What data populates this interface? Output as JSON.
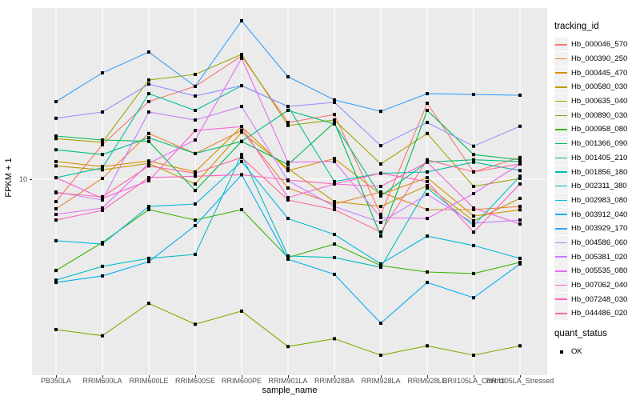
{
  "figure": {
    "background": "#FFFFFF",
    "panel_background": "#EBEBEB",
    "gridline_color": "#FFFFFF",
    "axis_text_color": "#4D4D4D",
    "point_color": "#000000"
  },
  "axes": {
    "x": {
      "title": "sample_name"
    },
    "y": {
      "title": "FPKM + 1",
      "tick_labels": [
        "10"
      ],
      "tick_values": [
        10
      ],
      "scale": "log10"
    }
  },
  "legend": {
    "tracking_title": "tracking_id",
    "quant_title": "quant_status",
    "quant_items": [
      {
        "label": "OK",
        "shape": "black-square"
      }
    ]
  },
  "chart_data": {
    "type": "line",
    "title": "",
    "xlabel": "sample_name",
    "ylabel": "FPKM + 1",
    "y_scale": "log10",
    "ylim": [
      0.9,
      95
    ],
    "y_ticks": [
      10
    ],
    "grid": true,
    "legend_position": "right",
    "point_shape": "filled-square",
    "categories": [
      "PB350LA",
      "RRIM600LA",
      "RRIM600LE",
      "RRIM600SE",
      "RRIM600PE",
      "RRIM901LA",
      "RRIM928BA",
      "RRIM928LA",
      "RRIM928LE",
      "RRII105LA_Control",
      "RRII105LA_Stressed"
    ],
    "series": [
      {
        "name": "Hb_000046_570",
        "color": "#F8766D",
        "values": [
          7.46,
          15.7,
          27.6,
          33.7,
          50.1,
          21.0,
          23.3,
          6.31,
          27.0,
          11.0,
          13.3
        ]
      },
      {
        "name": "Hb_000390_250",
        "color": "#EA8331",
        "values": [
          6.79,
          10.1,
          18.2,
          14.0,
          18.9,
          8.91,
          7.23,
          8.46,
          6.72,
          6.72,
          7.0
        ]
      },
      {
        "name": "Hb_000445_470",
        "color": "#D89000",
        "values": [
          12.6,
          11.8,
          12.7,
          11.0,
          19.9,
          11.2,
          13.1,
          8.2,
          10.2,
          6.18,
          6.7
        ]
      },
      {
        "name": "Hb_000580_030",
        "color": "#C09B00",
        "values": [
          11.9,
          11.3,
          12.3,
          9.39,
          18.5,
          11.5,
          7.46,
          7.0,
          9.2,
          5.8,
          7.78
        ]
      },
      {
        "name": "Hb_000635_040",
        "color": "#A3A500",
        "values": [
          17.0,
          16.2,
          36.6,
          39.4,
          51.2,
          20.2,
          21.7,
          12.2,
          18.2,
          9.1,
          10.1
        ]
      },
      {
        "name": "Hb_000890_030",
        "color": "#7CAE00",
        "values": [
          1.4,
          1.29,
          1.97,
          1.5,
          1.78,
          1.12,
          1.24,
          1.0,
          1.13,
          1.0,
          1.13
        ]
      },
      {
        "name": "Hb_000958_080",
        "color": "#39B600",
        "values": [
          3.03,
          4.37,
          6.72,
          5.86,
          6.72,
          3.59,
          4.28,
          3.23,
          2.97,
          2.91,
          3.37
        ]
      },
      {
        "name": "Hb_001366_090",
        "color": "#00BB4E",
        "values": [
          17.6,
          16.7,
          16.4,
          8.63,
          16.4,
          12.1,
          21.0,
          4.75,
          24.6,
          13.8,
          12.9
        ]
      },
      {
        "name": "Hb_001405_210",
        "color": "#00BF7D",
        "values": [
          14.7,
          13.8,
          17.2,
          14.0,
          16.4,
          24.6,
          20.6,
          8.03,
          12.5,
          12.9,
          12.6
        ]
      },
      {
        "name": "Hb_001856_180",
        "color": "#00C1A3",
        "values": [
          10.2,
          11.6,
          30.6,
          24.6,
          34.0,
          25.9,
          9.7,
          10.8,
          11.0,
          12.5,
          11.2
        ]
      },
      {
        "name": "Hb_002311_380",
        "color": "#00BFC4",
        "values": [
          2.67,
          3.2,
          3.55,
          3.74,
          13.8,
          3.66,
          3.59,
          3.16,
          8.91,
          5.45,
          10.4
        ]
      },
      {
        "name": "Hb_002983_080",
        "color": "#00BAE0",
        "values": [
          4.47,
          4.28,
          7.0,
          7.23,
          12.6,
          5.98,
          4.85,
          3.3,
          4.75,
          4.2,
          3.55
        ]
      },
      {
        "name": "Hb_003912_040",
        "color": "#00B0F6",
        "values": [
          2.59,
          2.82,
          3.4,
          5.45,
          10.6,
          3.51,
          2.88,
          1.52,
          2.59,
          2.12,
          3.3
        ]
      },
      {
        "name": "Hb_003929_170",
        "color": "#35A2FF",
        "values": [
          27.6,
          40.2,
          52.8,
          33.7,
          79.4,
          38.2,
          28.2,
          24.3,
          30.6,
          30.3,
          30.0
        ]
      },
      {
        "name": "Hb_004586_060",
        "color": "#9590FF",
        "values": [
          22.2,
          24.1,
          34.7,
          29.7,
          34.0,
          25.9,
          27.3,
          15.5,
          21.0,
          15.4,
          20.0
        ]
      },
      {
        "name": "Hb_005381_020",
        "color": "#C77CFF",
        "values": [
          8.46,
          7.62,
          24.1,
          21.7,
          25.9,
          9.8,
          7.0,
          5.68,
          8.2,
          5.62,
          5.86
        ]
      },
      {
        "name": "Hb_005535_080",
        "color": "#E76BF3",
        "values": [
          6.31,
          6.86,
          12.3,
          16.7,
          48.6,
          12.5,
          12.6,
          6.05,
          5.98,
          8.28,
          12.2
        ]
      },
      {
        "name": "Hb_007062_040",
        "color": "#FA62DB",
        "values": [
          10.2,
          7.78,
          9.8,
          18.9,
          19.9,
          7.86,
          9.39,
          9.1,
          12.5,
          6.86,
          5.56
        ]
      },
      {
        "name": "Hb_007248_030",
        "color": "#FF62BC",
        "values": [
          5.86,
          6.65,
          10.2,
          10.4,
          10.6,
          9.9,
          9.39,
          10.8,
          9.7,
          5.0,
          9.39
        ]
      },
      {
        "name": "Hb_044486_020",
        "color": "#FF6A98",
        "values": [
          8.37,
          7.94,
          11.9,
          10.8,
          13.3,
          7.62,
          6.72,
          5.0,
          12.9,
          11.0,
          12.2
        ]
      }
    ]
  }
}
